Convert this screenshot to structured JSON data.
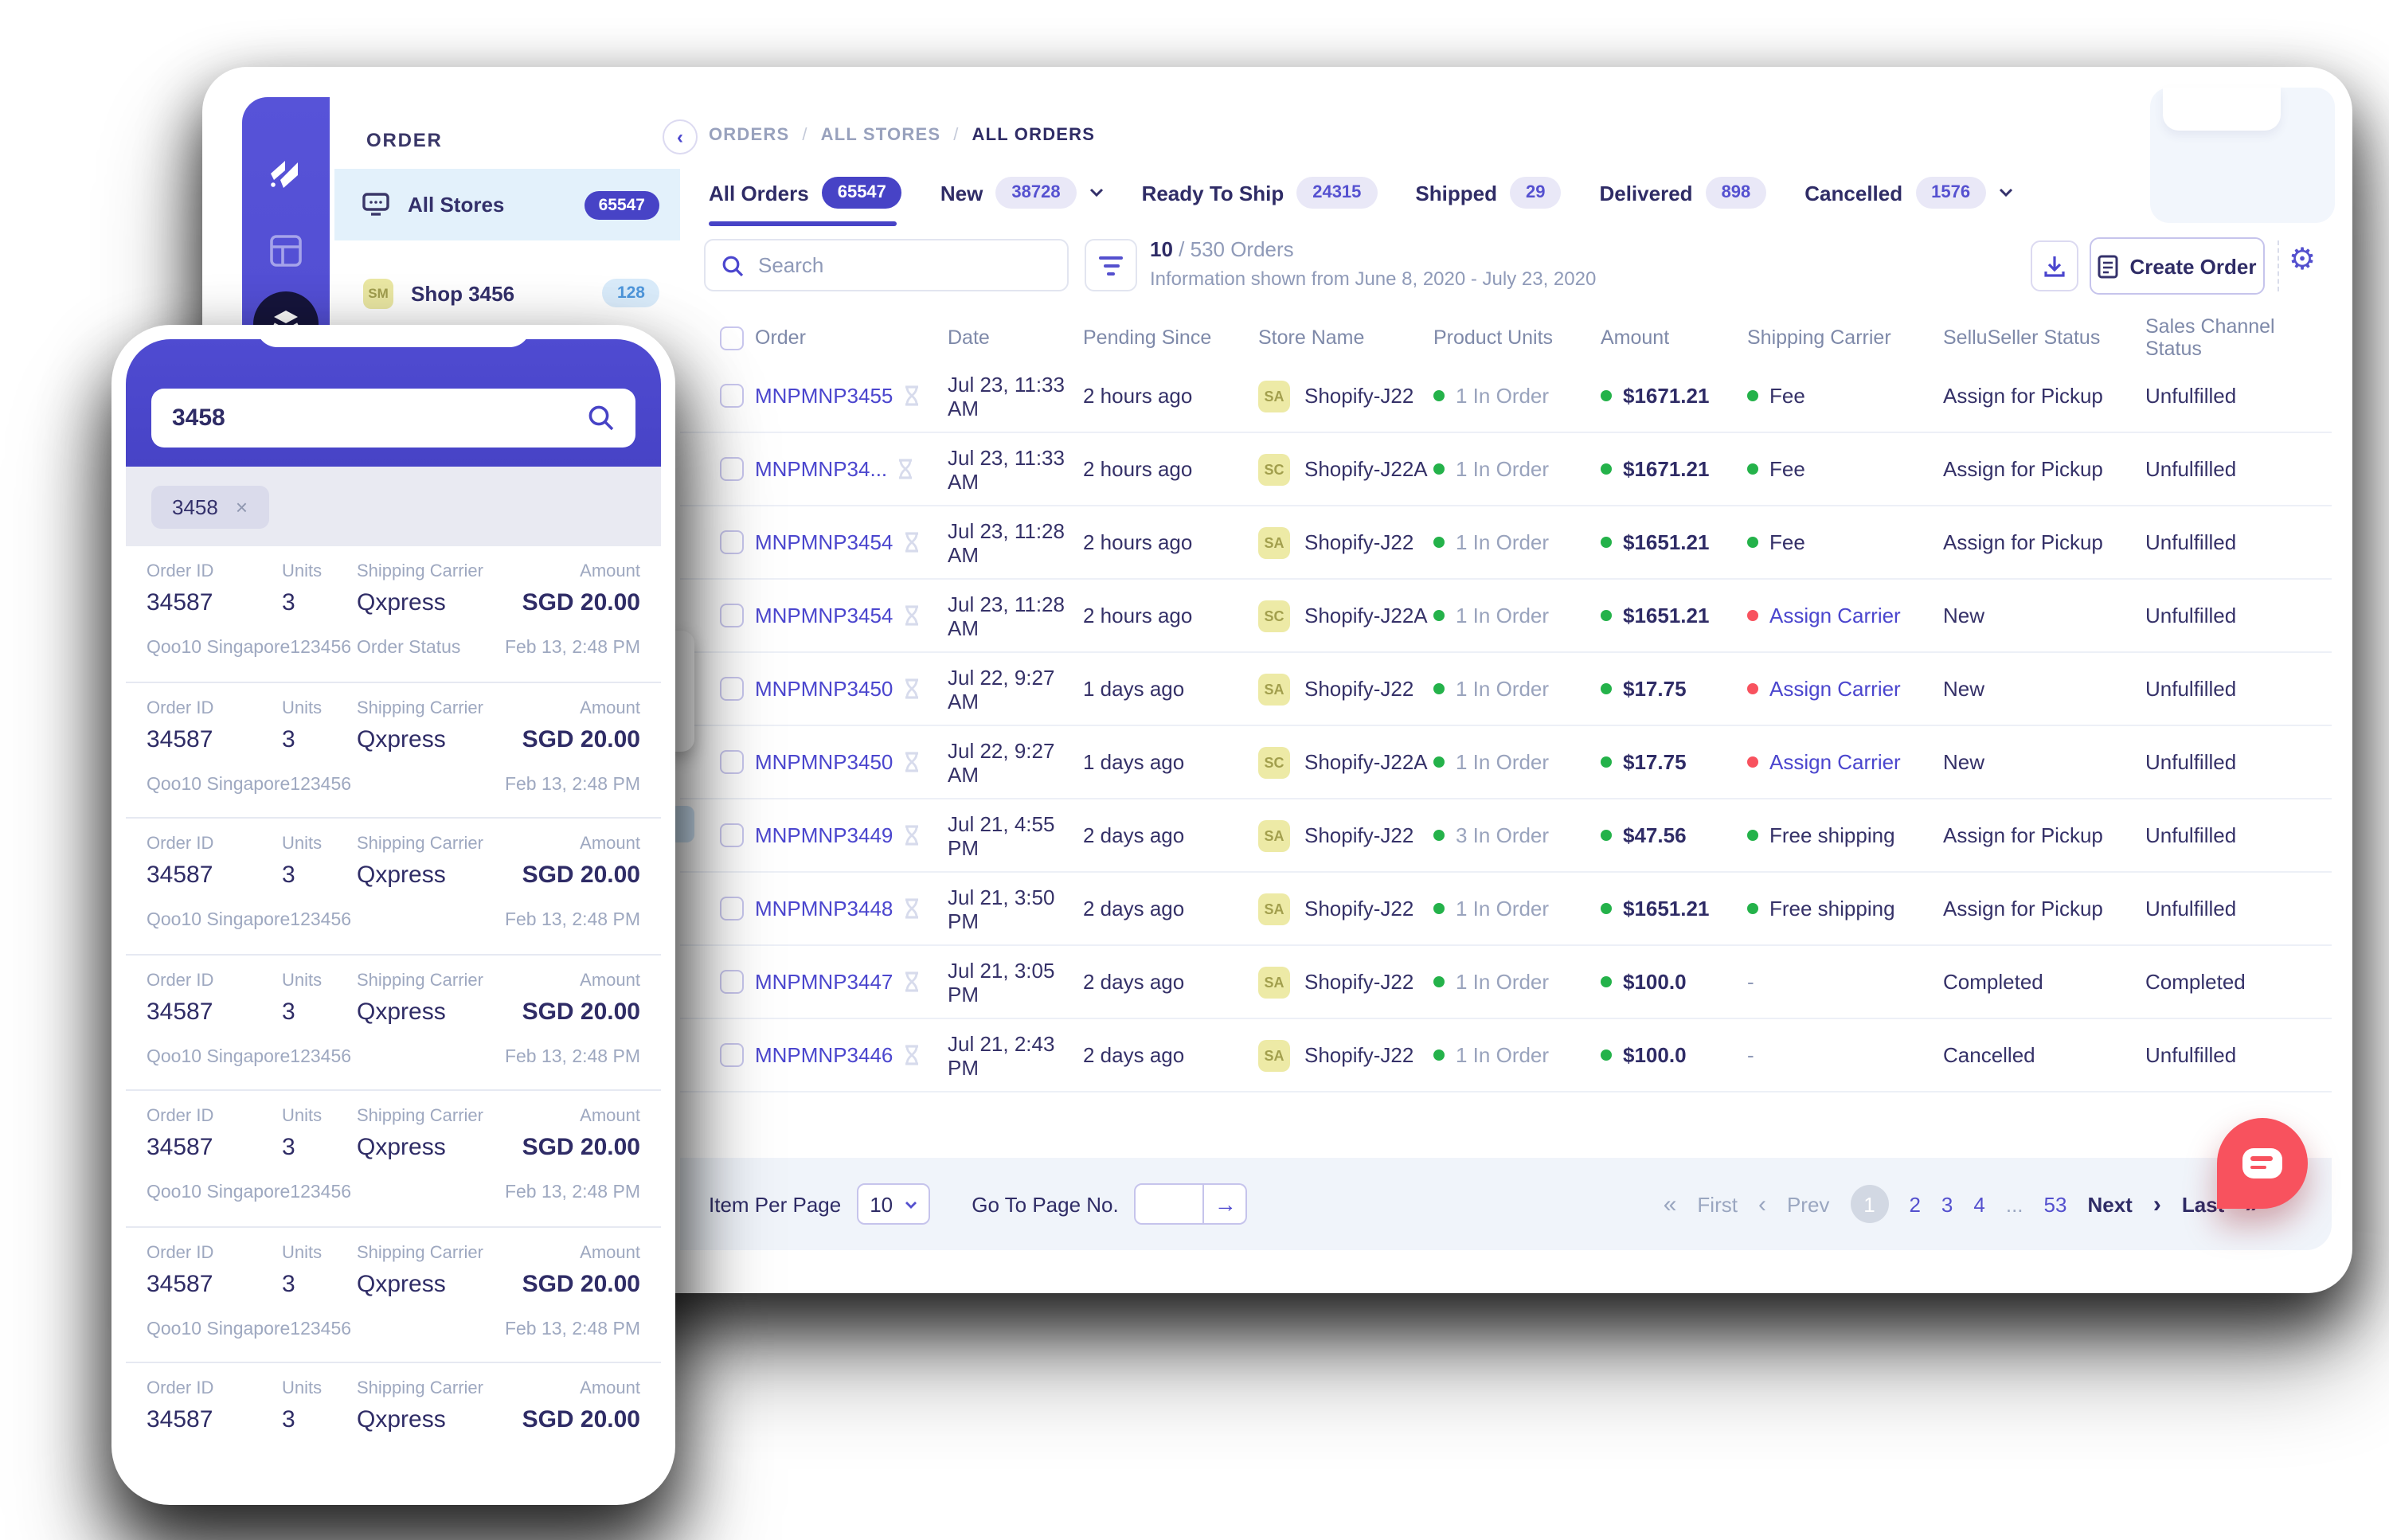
{
  "colors": {
    "accent": "#4743C6",
    "link": "#4B46CE",
    "green": "#24B24A",
    "red": "#F8525E",
    "navy": "#2F2C66",
    "yellow_badge_bg": "#EDEAA6",
    "selected_item_bg": "#E3F1FB",
    "pagination_bg": "#F0F4FA",
    "chat": "#F8525E"
  },
  "glyphs": {
    "slash": "/",
    "close": "×",
    "angle_double_left": "«",
    "angle_left": "‹",
    "angle_right": "›",
    "angle_double_right": "»",
    "arrow_right": "→",
    "gear": "⚙",
    "chevron_left": "‹",
    "ellipsis": "..."
  },
  "desktop": {
    "sidebar": {
      "section_title": "ORDER",
      "items": [
        {
          "label": "All Stores",
          "count": "65547",
          "selected": true
        },
        {
          "badge": "SM",
          "label": "Shop 3456",
          "count": "128",
          "selected": false
        }
      ]
    },
    "breadcrumb": [
      "ORDERS",
      "ALL STORES",
      "ALL ORDERS"
    ],
    "tabs": [
      {
        "label": "All Orders",
        "count": "65547",
        "active": true,
        "chevron": false
      },
      {
        "label": "New",
        "count": "38728",
        "active": false,
        "chevron": true
      },
      {
        "label": "Ready To Ship",
        "count": "24315",
        "active": false,
        "chevron": false
      },
      {
        "label": "Shipped",
        "count": "29",
        "active": false,
        "chevron": false
      },
      {
        "label": "Delivered",
        "count": "898",
        "active": false,
        "chevron": false
      },
      {
        "label": "Cancelled",
        "count": "1576",
        "active": false,
        "chevron": true
      }
    ],
    "toolbar": {
      "search_placeholder": "Search",
      "count_current": "10",
      "count_rest": " / 530 Orders",
      "info_line": "Information shown from June 8, 2020 - July 23, 2020",
      "create_order_label": "Create Order"
    },
    "table": {
      "columns": [
        "Order",
        "Date",
        "Pending Since",
        "Store Name",
        "Product Units",
        "Amount",
        "Shipping Carrier",
        "SelluSeller Status",
        "Sales Channel Status"
      ],
      "rows": [
        {
          "id": "MNPMNP3455",
          "date": "Jul 23, 11:33 AM",
          "pending": "2 hours ago",
          "badge": "SA",
          "store": "Shopify-J22",
          "units": "1 In Order",
          "amount": "$1671.21",
          "carrier": "Fee",
          "carrier_dot": "green",
          "carrier_link": false,
          "status": "Assign for Pickup",
          "channel": "Unfulfilled"
        },
        {
          "id": "MNPMNP34...",
          "date": "Jul 23, 11:33 AM",
          "pending": "2 hours ago",
          "badge": "SC",
          "store": "Shopify-J22A",
          "units": "1 In Order",
          "amount": "$1671.21",
          "carrier": "Fee",
          "carrier_dot": "green",
          "carrier_link": false,
          "status": "Assign for Pickup",
          "channel": "Unfulfilled"
        },
        {
          "id": "MNPMNP3454",
          "date": "Jul 23, 11:28 AM",
          "pending": "2 hours ago",
          "badge": "SA",
          "store": "Shopify-J22",
          "units": "1 In Order",
          "amount": "$1651.21",
          "carrier": "Fee",
          "carrier_dot": "green",
          "carrier_link": false,
          "status": "Assign for Pickup",
          "channel": "Unfulfilled"
        },
        {
          "id": "MNPMNP3454",
          "date": "Jul 23, 11:28 AM",
          "pending": "2 hours ago",
          "badge": "SC",
          "store": "Shopify-J22A",
          "units": "1 In Order",
          "amount": "$1651.21",
          "carrier": "Assign Carrier",
          "carrier_dot": "red",
          "carrier_link": true,
          "status": "New",
          "channel": "Unfulfilled"
        },
        {
          "id": "MNPMNP3450",
          "date": "Jul 22, 9:27 AM",
          "pending": "1 days ago",
          "badge": "SA",
          "store": "Shopify-J22",
          "units": "1 In Order",
          "amount": "$17.75",
          "carrier": "Assign Carrier",
          "carrier_dot": "red",
          "carrier_link": true,
          "status": "New",
          "channel": "Unfulfilled"
        },
        {
          "id": "MNPMNP3450",
          "date": "Jul 22, 9:27 AM",
          "pending": "1 days ago",
          "badge": "SC",
          "store": "Shopify-J22A",
          "units": "1 In Order",
          "amount": "$17.75",
          "carrier": "Assign Carrier",
          "carrier_dot": "red",
          "carrier_link": true,
          "status": "New",
          "channel": "Unfulfilled"
        },
        {
          "id": "MNPMNP3449",
          "date": "Jul 21, 4:55 PM",
          "pending": "2 days ago",
          "badge": "SA",
          "store": "Shopify-J22",
          "units": "3 In Order",
          "amount": "$47.56",
          "carrier": "Free shipping",
          "carrier_dot": "green",
          "carrier_link": false,
          "status": "Assign for Pickup",
          "channel": "Unfulfilled"
        },
        {
          "id": "MNPMNP3448",
          "date": "Jul 21, 3:50 PM",
          "pending": "2 days ago",
          "badge": "SA",
          "store": "Shopify-J22",
          "units": "1 In Order",
          "amount": "$1651.21",
          "carrier": "Free shipping",
          "carrier_dot": "green",
          "carrier_link": false,
          "status": "Assign for Pickup",
          "channel": "Unfulfilled"
        },
        {
          "id": "MNPMNP3447",
          "date": "Jul 21, 3:05 PM",
          "pending": "2 days ago",
          "badge": "SA",
          "store": "Shopify-J22",
          "units": "1 In Order",
          "amount": "$100.0",
          "carrier": "-",
          "carrier_dot": "none",
          "carrier_link": false,
          "status": "Completed",
          "channel": "Completed"
        },
        {
          "id": "MNPMNP3446",
          "date": "Jul 21, 2:43 PM",
          "pending": "2 days ago",
          "badge": "SA",
          "store": "Shopify-J22",
          "units": "1 In Order",
          "amount": "$100.0",
          "carrier": "-",
          "carrier_dot": "none",
          "carrier_link": false,
          "status": "Cancelled",
          "channel": "Unfulfilled"
        }
      ]
    },
    "pagination": {
      "items_per_page_label": "Item Per Page",
      "items_per_page_value": "10",
      "goto_label": "Go To Page No.",
      "goto_value": "",
      "first": "First",
      "prev": "Prev",
      "pages": [
        "1",
        "2",
        "3",
        "4",
        "...",
        "53"
      ],
      "current_page": "1",
      "next": "Next",
      "last": "Last"
    }
  },
  "phone": {
    "search_value": "3458",
    "chip": "3458",
    "labels": {
      "order_id": "Order ID",
      "units": "Units",
      "carrier": "Shipping Carrier",
      "amount": "Amount",
      "order_status": "Order Status"
    },
    "values": {
      "order_id": "34587",
      "units": "3",
      "carrier": "Qxpress",
      "amount": "SGD 20.00",
      "store": "Qoo10 Singapore123456",
      "time": "Feb 13, 2:48 PM"
    },
    "cards": [
      {
        "sub": true,
        "status_label": true
      },
      {
        "sub": true,
        "status_label": false
      },
      {
        "sub": true,
        "status_label": false
      },
      {
        "sub": true,
        "status_label": false
      },
      {
        "sub": true,
        "status_label": false
      },
      {
        "sub": true,
        "status_label": false
      },
      {
        "sub": false,
        "status_label": false
      }
    ]
  }
}
